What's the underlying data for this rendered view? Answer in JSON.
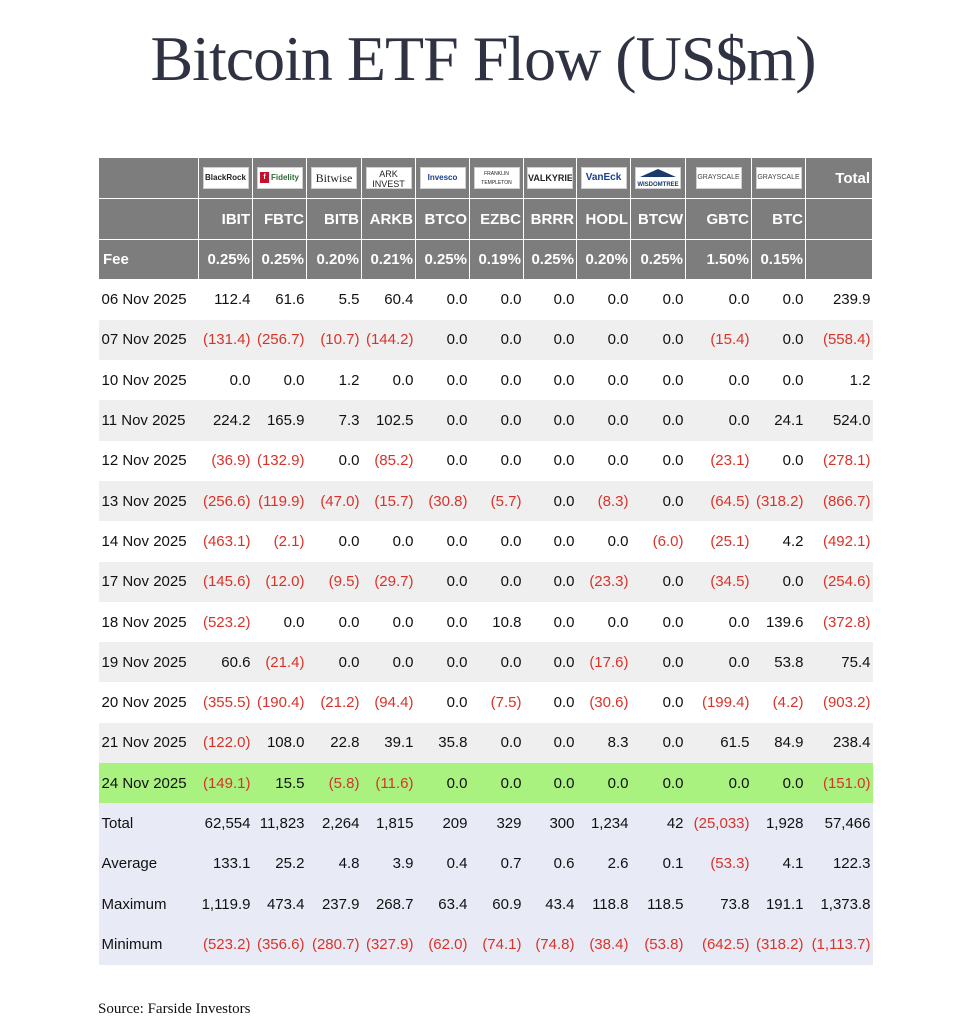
{
  "title": "Bitcoin ETF Flow (US$m)",
  "source": "Source: Farside Investors",
  "colors": {
    "header_bg": "#7d7d7d",
    "negative": "#d8332a",
    "highlight": "#a9f27f",
    "summary_bg": "#e8ebf6",
    "stripe": "#efefef"
  },
  "header": {
    "total_label": "Total",
    "fee_label": "Fee",
    "issuers": [
      {
        "logo": "BlackRock",
        "ticker": "IBIT",
        "fee": "0.25%"
      },
      {
        "logo": "Fidelity",
        "ticker": "FBTC",
        "fee": "0.25%"
      },
      {
        "logo": "Bitwise",
        "ticker": "BITB",
        "fee": "0.20%"
      },
      {
        "logo": "ARK INVEST",
        "ticker": "ARKB",
        "fee": "0.21%"
      },
      {
        "logo": "Invesco",
        "ticker": "BTCO",
        "fee": "0.25%"
      },
      {
        "logo": "FRANKLIN TEMPLETON",
        "ticker": "EZBC",
        "fee": "0.19%"
      },
      {
        "logo": "VALKYRIE",
        "ticker": "BRRR",
        "fee": "0.25%"
      },
      {
        "logo": "VanEck",
        "ticker": "HODL",
        "fee": "0.20%"
      },
      {
        "logo": "WISDOMTREE",
        "ticker": "BTCW",
        "fee": "0.25%"
      },
      {
        "logo": "GRAYSCALE",
        "ticker": "GBTC",
        "fee": "1.50%"
      },
      {
        "logo": "GRAYSCALE",
        "ticker": "BTC",
        "fee": "0.15%"
      }
    ]
  },
  "rows": [
    {
      "date": "06 Nov 2025",
      "values": [
        "112.4",
        "61.6",
        "5.5",
        "60.4",
        "0.0",
        "0.0",
        "0.0",
        "0.0",
        "0.0",
        "0.0",
        "0.0",
        "239.9"
      ]
    },
    {
      "date": "07 Nov 2025",
      "values": [
        "(131.4)",
        "(256.7)",
        "(10.7)",
        "(144.2)",
        "0.0",
        "0.0",
        "0.0",
        "0.0",
        "0.0",
        "(15.4)",
        "0.0",
        "(558.4)"
      ]
    },
    {
      "date": "10 Nov 2025",
      "values": [
        "0.0",
        "0.0",
        "1.2",
        "0.0",
        "0.0",
        "0.0",
        "0.0",
        "0.0",
        "0.0",
        "0.0",
        "0.0",
        "1.2"
      ]
    },
    {
      "date": "11 Nov 2025",
      "values": [
        "224.2",
        "165.9",
        "7.3",
        "102.5",
        "0.0",
        "0.0",
        "0.0",
        "0.0",
        "0.0",
        "0.0",
        "24.1",
        "524.0"
      ]
    },
    {
      "date": "12 Nov 2025",
      "values": [
        "(36.9)",
        "(132.9)",
        "0.0",
        "(85.2)",
        "0.0",
        "0.0",
        "0.0",
        "0.0",
        "0.0",
        "(23.1)",
        "0.0",
        "(278.1)"
      ]
    },
    {
      "date": "13 Nov 2025",
      "values": [
        "(256.6)",
        "(119.9)",
        "(47.0)",
        "(15.7)",
        "(30.8)",
        "(5.7)",
        "0.0",
        "(8.3)",
        "0.0",
        "(64.5)",
        "(318.2)",
        "(866.7)"
      ]
    },
    {
      "date": "14 Nov 2025",
      "values": [
        "(463.1)",
        "(2.1)",
        "0.0",
        "0.0",
        "0.0",
        "0.0",
        "0.0",
        "0.0",
        "(6.0)",
        "(25.1)",
        "4.2",
        "(492.1)"
      ]
    },
    {
      "date": "17 Nov 2025",
      "values": [
        "(145.6)",
        "(12.0)",
        "(9.5)",
        "(29.7)",
        "0.0",
        "0.0",
        "0.0",
        "(23.3)",
        "0.0",
        "(34.5)",
        "0.0",
        "(254.6)"
      ]
    },
    {
      "date": "18 Nov 2025",
      "values": [
        "(523.2)",
        "0.0",
        "0.0",
        "0.0",
        "0.0",
        "10.8",
        "0.0",
        "0.0",
        "0.0",
        "0.0",
        "139.6",
        "(372.8)"
      ]
    },
    {
      "date": "19 Nov 2025",
      "values": [
        "60.6",
        "(21.4)",
        "0.0",
        "0.0",
        "0.0",
        "0.0",
        "0.0",
        "(17.6)",
        "0.0",
        "0.0",
        "53.8",
        "75.4"
      ]
    },
    {
      "date": "20 Nov 2025",
      "values": [
        "(355.5)",
        "(190.4)",
        "(21.2)",
        "(94.4)",
        "0.0",
        "(7.5)",
        "0.0",
        "(30.6)",
        "0.0",
        "(199.4)",
        "(4.2)",
        "(903.2)"
      ]
    },
    {
      "date": "21 Nov 2025",
      "values": [
        "(122.0)",
        "108.0",
        "22.8",
        "39.1",
        "35.8",
        "0.0",
        "0.0",
        "8.3",
        "0.0",
        "61.5",
        "84.9",
        "238.4"
      ]
    },
    {
      "date": "24 Nov 2025",
      "highlight": true,
      "values": [
        "(149.1)",
        "15.5",
        "(5.8)",
        "(11.6)",
        "0.0",
        "0.0",
        "0.0",
        "0.0",
        "0.0",
        "0.0",
        "0.0",
        "(151.0)"
      ]
    }
  ],
  "summary": [
    {
      "label": "Total",
      "values": [
        "62,554",
        "11,823",
        "2,264",
        "1,815",
        "209",
        "329",
        "300",
        "1,234",
        "42",
        "(25,033)",
        "1,928",
        "57,466"
      ]
    },
    {
      "label": "Average",
      "values": [
        "133.1",
        "25.2",
        "4.8",
        "3.9",
        "0.4",
        "0.7",
        "0.6",
        "2.6",
        "0.1",
        "(53.3)",
        "4.1",
        "122.3"
      ]
    },
    {
      "label": "Maximum",
      "values": [
        "1,119.9",
        "473.4",
        "237.9",
        "268.7",
        "63.4",
        "60.9",
        "43.4",
        "118.8",
        "118.5",
        "73.8",
        "191.1",
        "1,373.8"
      ]
    },
    {
      "label": "Minimum",
      "values": [
        "(523.2)",
        "(356.6)",
        "(280.7)",
        "(327.9)",
        "(62.0)",
        "(74.1)",
        "(74.8)",
        "(38.4)",
        "(53.8)",
        "(642.5)",
        "(318.2)",
        "(1,113.7)"
      ]
    }
  ]
}
